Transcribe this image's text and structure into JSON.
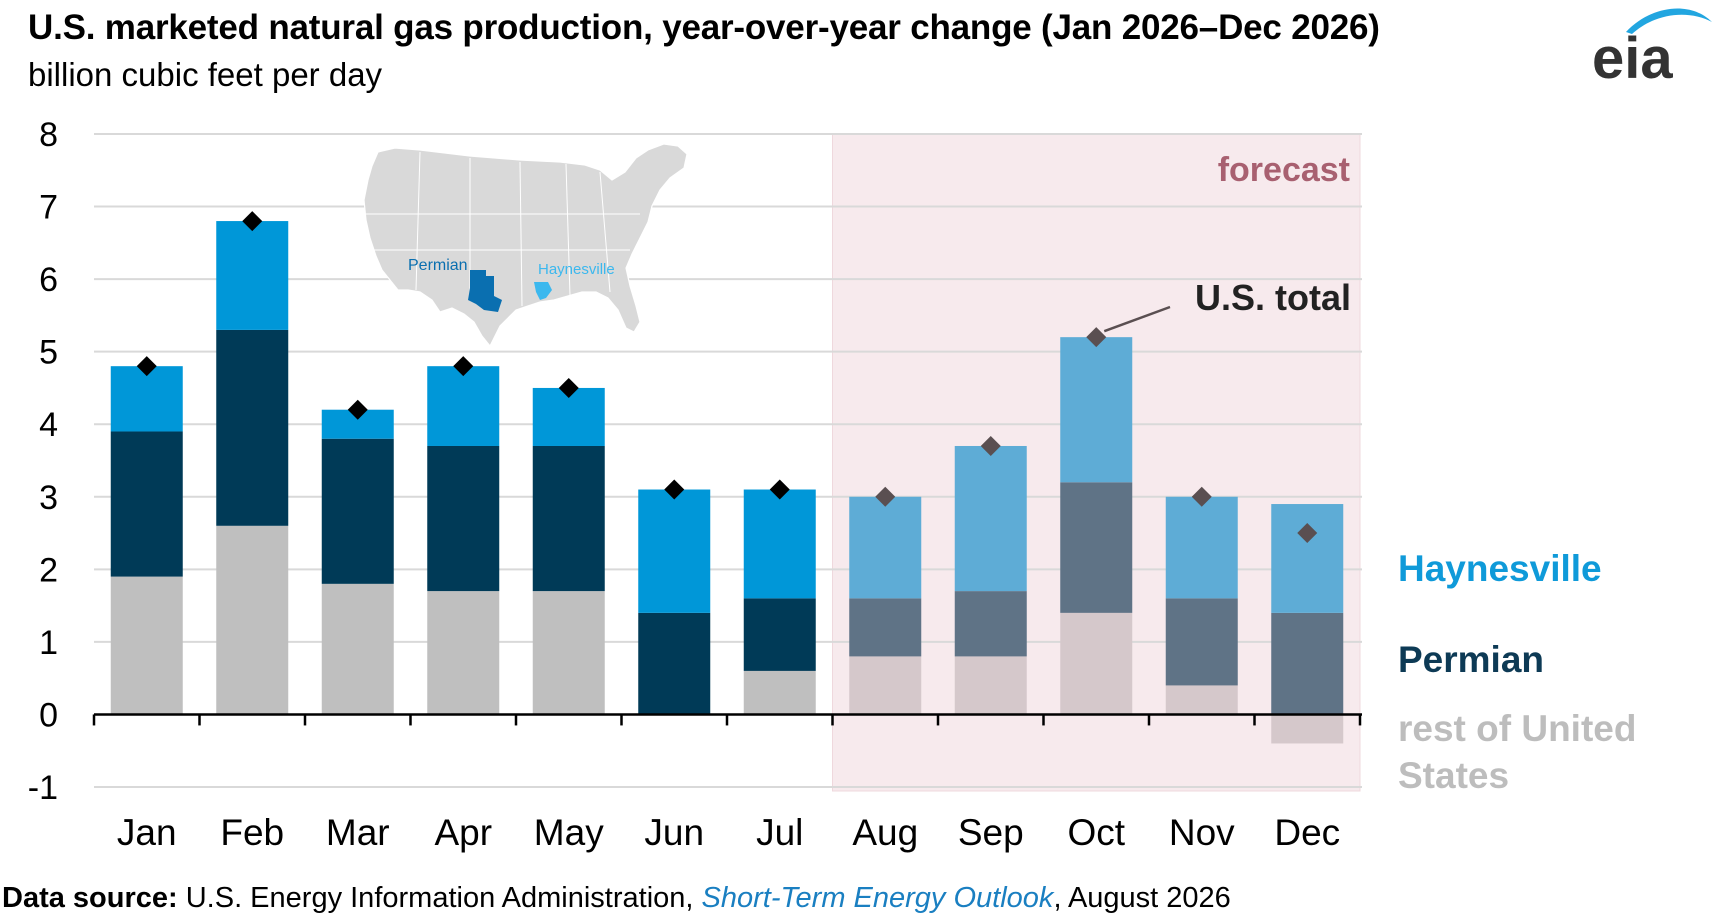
{
  "header": {
    "title": "U.S. marketed natural gas production, year-over-year change (Jan 2026–Dec 2026)",
    "subtitle": "billion cubic feet per day",
    "logo_text": "eia"
  },
  "source": {
    "label": "Data source:",
    "text_before": " U.S. Energy Information Administration, ",
    "publication": "Short-Term Energy Outlook",
    "text_after": ", August 2026"
  },
  "colors": {
    "haynesville": "#0097d8",
    "permian": "#003a57",
    "rest": "#bfbfbf",
    "haynesville_forecast": "#5eacd6",
    "permian_forecast": "#5f7386",
    "rest_forecast": "#d5c8cb",
    "forecast_band": "#f7eaed",
    "forecast_text": "#a86070",
    "total_marker": "#000000",
    "total_marker_forecast": "#5a4f51",
    "label_haynesville": "#0f9ad9",
    "label_permian": "#0d3a55",
    "label_rest": "#bdbdbd"
  },
  "inset_map": {
    "labels": [
      "Permian",
      "Haynesville"
    ]
  },
  "chart_data": {
    "type": "bar",
    "stacked": true,
    "categories": [
      "Jan",
      "Feb",
      "Mar",
      "Apr",
      "May",
      "Jun",
      "Jul",
      "Aug",
      "Sep",
      "Oct",
      "Nov",
      "Dec"
    ],
    "series": [
      {
        "name": "rest of United States",
        "values": [
          1.9,
          2.6,
          1.8,
          1.7,
          1.7,
          0.0,
          0.6,
          0.8,
          0.8,
          1.4,
          0.4,
          -0.4
        ]
      },
      {
        "name": "Permian",
        "values": [
          2.0,
          2.7,
          2.0,
          2.0,
          2.0,
          1.4,
          1.0,
          0.8,
          0.9,
          1.8,
          1.2,
          1.4
        ]
      },
      {
        "name": "Haynesville",
        "values": [
          0.9,
          1.5,
          0.4,
          1.1,
          0.8,
          1.7,
          1.5,
          1.4,
          2.0,
          2.0,
          1.4,
          1.5
        ]
      }
    ],
    "totals": {
      "name": "U.S. total",
      "values": [
        4.8,
        6.8,
        4.2,
        4.8,
        4.5,
        3.1,
        3.1,
        3.0,
        3.7,
        5.2,
        3.0,
        2.5
      ]
    },
    "forecast_start_index": 7,
    "forecast_label": "forecast",
    "yticks": [
      -1,
      0,
      1,
      2,
      3,
      4,
      5,
      6,
      7,
      8
    ],
    "ylim": [
      -1,
      8
    ],
    "grid": true,
    "legend": {
      "placement": "right",
      "items": [
        {
          "lines": [
            "Haynesville"
          ]
        },
        {
          "lines": [
            "Permian"
          ]
        },
        {
          "lines": [
            "rest of United",
            "States"
          ]
        }
      ]
    },
    "annotation": {
      "text": "U.S. total",
      "target_index": 9
    }
  }
}
